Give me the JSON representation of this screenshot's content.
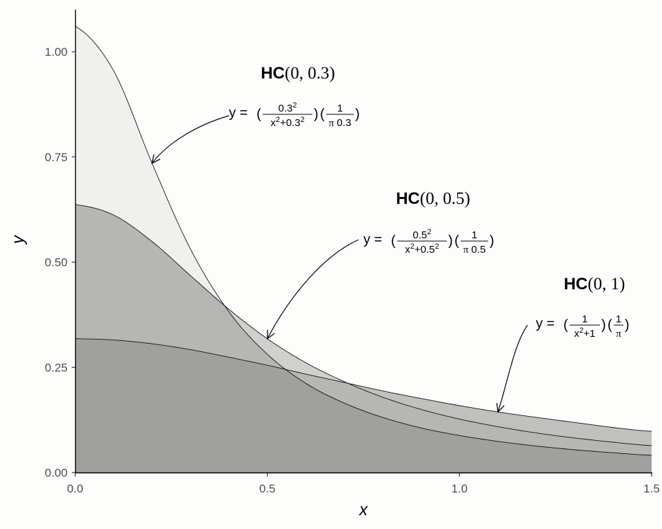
{
  "chart_data": {
    "type": "area",
    "title": "",
    "xlabel": "x",
    "ylabel": "y",
    "xlim": [
      0,
      1.5
    ],
    "ylim": [
      0,
      1.1
    ],
    "x_ticks": [
      {
        "value": 0,
        "label": "0.0"
      },
      {
        "value": 0.5,
        "label": "0.5"
      },
      {
        "value": 1,
        "label": "1.0"
      },
      {
        "value": 1.5,
        "label": "1.5"
      }
    ],
    "y_ticks": [
      {
        "value": 0,
        "label": "0.00"
      },
      {
        "value": 0.25,
        "label": "0.25"
      },
      {
        "value": 0.5,
        "label": "0.50"
      },
      {
        "value": 0.75,
        "label": "0.75"
      },
      {
        "value": 1,
        "label": "1.00"
      }
    ],
    "grid": false,
    "series": [
      {
        "scale": 0.3,
        "color": "#f0f0ee",
        "x": [
          0,
          0.1,
          0.2,
          0.3,
          0.4,
          0.5,
          0.6,
          0.7,
          0.8,
          0.9,
          1.0,
          1.1,
          1.2,
          1.3,
          1.4,
          1.5
        ],
        "y": [
          1.061,
          0.955,
          0.735,
          0.531,
          0.382,
          0.281,
          0.212,
          0.165,
          0.131,
          0.106,
          0.088,
          0.074,
          0.063,
          0.054,
          0.047,
          0.041
        ]
      },
      {
        "scale": 0.5,
        "color": "#d0d0ce",
        "x": [
          0,
          0.1,
          0.2,
          0.3,
          0.4,
          0.5,
          0.6,
          0.7,
          0.8,
          0.9,
          1.0,
          1.1,
          1.2,
          1.3,
          1.4,
          1.5
        ],
        "y": [
          0.637,
          0.612,
          0.549,
          0.468,
          0.388,
          0.318,
          0.261,
          0.216,
          0.179,
          0.15,
          0.127,
          0.109,
          0.094,
          0.082,
          0.072,
          0.064
        ]
      },
      {
        "scale": 1,
        "color": "#c0c0be",
        "x": [
          0,
          0.1,
          0.2,
          0.3,
          0.4,
          0.5,
          0.6,
          0.7,
          0.8,
          0.9,
          1.0,
          1.1,
          1.2,
          1.3,
          1.4,
          1.5
        ],
        "y": [
          0.318,
          0.315,
          0.306,
          0.292,
          0.274,
          0.255,
          0.234,
          0.214,
          0.194,
          0.176,
          0.159,
          0.144,
          0.131,
          0.119,
          0.107,
          0.098
        ]
      }
    ],
    "overlap_color": "#a0a09e",
    "annotations": [
      {
        "title_bold": "HC",
        "title_params": "(0, 0.3)",
        "y_prefix": "y =",
        "numerator_1": "0.3",
        "numerator_1_sup": "2",
        "denominator_1": "x",
        "denominator_1_sup": "2",
        "denominator_1_rest": "+0.3",
        "denominator_1_rest_sup": "2",
        "numerator_2": "1",
        "denominator_2_pi": "π",
        "denominator_2": "0.3",
        "arrow_to": [
          0.2,
          0.735
        ]
      },
      {
        "title_bold": "HC",
        "title_params": "(0, 0.5)",
        "y_prefix": "y =",
        "numerator_1": "0.5",
        "numerator_1_sup": "2",
        "denominator_1": "x",
        "denominator_1_sup": "2",
        "denominator_1_rest": "+0.5",
        "denominator_1_rest_sup": "2",
        "numerator_2": "1",
        "denominator_2_pi": "π",
        "denominator_2": "0.5",
        "arrow_to": [
          0.5,
          0.318
        ]
      },
      {
        "title_bold": "HC",
        "title_params": "(0, 1)",
        "y_prefix": "y =",
        "numerator_1": "1",
        "numerator_1_sup": "",
        "denominator_1": "x",
        "denominator_1_sup": "2",
        "denominator_1_rest": "+1",
        "denominator_1_rest_sup": "",
        "numerator_2": "1",
        "denominator_2_pi": "π",
        "denominator_2": "",
        "arrow_to": [
          1.1,
          0.144
        ]
      }
    ]
  }
}
